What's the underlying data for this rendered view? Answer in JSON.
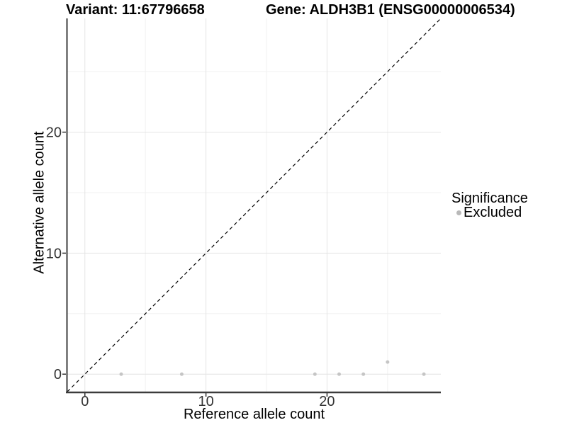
{
  "header": {
    "variant_title": "Variant: 11:67796658",
    "gene_title": "Gene: ALDH3B1 (ENSG00000006534)"
  },
  "chart_data": {
    "type": "scatter",
    "xlabel": "Reference allele count",
    "ylabel": "Alternative allele count",
    "xlim": [
      -1.45,
      29.4
    ],
    "ylim": [
      -1.45,
      29.4
    ],
    "x_ticks": [
      0,
      10,
      20
    ],
    "y_ticks": [
      0,
      10,
      20
    ],
    "x_minor_ticks": [
      5,
      15,
      25
    ],
    "y_minor_ticks": [
      5,
      15,
      25
    ],
    "grid": true,
    "series": [
      {
        "name": "Excluded",
        "color": "#c5c5c5",
        "marker_radius": 2.5,
        "points": [
          [
            3,
            0
          ],
          [
            8,
            0
          ],
          [
            19,
            0
          ],
          [
            21,
            0
          ],
          [
            23,
            0
          ],
          [
            25,
            1
          ],
          [
            28,
            0
          ]
        ]
      }
    ],
    "reference_line": {
      "slope": 1,
      "intercept": 0,
      "style": "dashed",
      "color": "#000000"
    },
    "legend": {
      "title": "Significance",
      "position": "right",
      "entries": [
        {
          "label": "Excluded",
          "color": "#b9b9b9"
        }
      ]
    },
    "style": {
      "background": "#ffffff",
      "grid_major": "#e4e4e4",
      "grid_minor": "#f1f1f1",
      "axis_line": "#3c3c3c",
      "tick_mark": "#333333",
      "tick_text": "#333333"
    }
  }
}
